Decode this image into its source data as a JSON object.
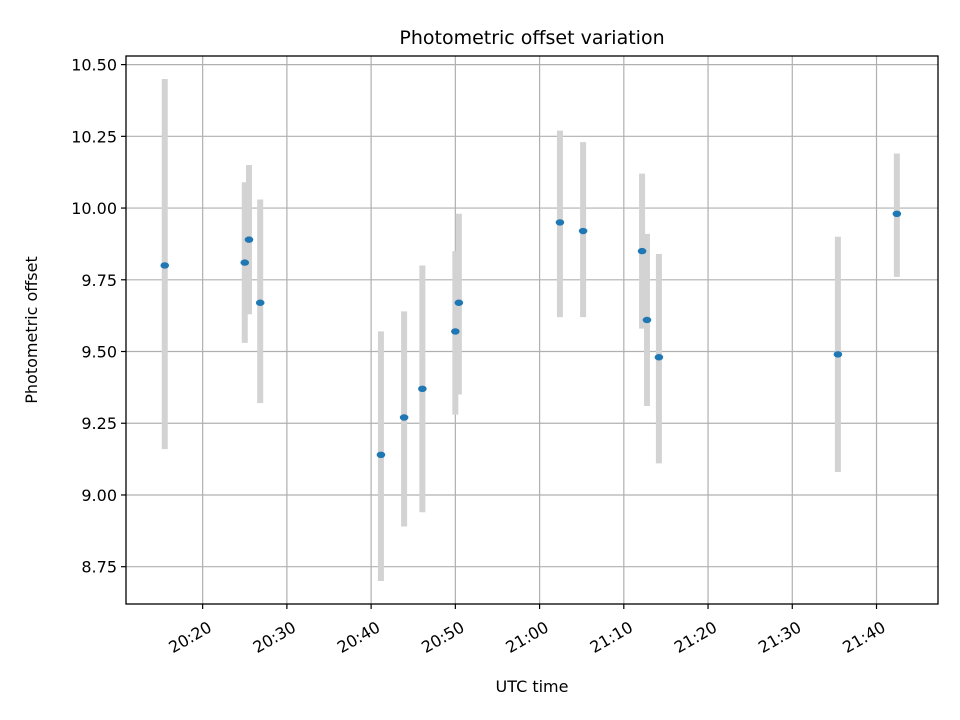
{
  "chart_data": {
    "type": "scatter",
    "title": "Photometric offset variation",
    "xlabel": "UTC time",
    "ylabel": "Photometric offset",
    "grid": true,
    "legend": "none",
    "x_axis_kind": "time",
    "xlim": [
      "20:10:54",
      "21:47:18"
    ],
    "ylim": [
      8.62,
      10.53
    ],
    "x_ticks": [
      "20:20",
      "20:30",
      "20:40",
      "20:50",
      "21:00",
      "21:10",
      "21:20",
      "21:30",
      "21:40"
    ],
    "y_ticks": [
      "8.75",
      "9.00",
      "9.25",
      "9.50",
      "9.75",
      "10.00",
      "10.25",
      "10.50"
    ],
    "colors": {
      "marker": "#1f77b4",
      "errorbar": "#d3d3d3",
      "grid": "#b0b0b0"
    },
    "points": [
      {
        "time": "20:15:30",
        "y": 9.8,
        "ylow": 9.16,
        "yhigh": 10.45
      },
      {
        "time": "20:25:00",
        "y": 9.81,
        "ylow": 9.53,
        "yhigh": 10.09
      },
      {
        "time": "20:25:30",
        "y": 9.89,
        "ylow": 9.63,
        "yhigh": 10.15
      },
      {
        "time": "20:26:50",
        "y": 9.67,
        "ylow": 9.32,
        "yhigh": 10.03
      },
      {
        "time": "20:41:10",
        "y": 9.14,
        "ylow": 8.7,
        "yhigh": 9.57
      },
      {
        "time": "20:43:55",
        "y": 9.27,
        "ylow": 8.89,
        "yhigh": 9.64
      },
      {
        "time": "20:46:05",
        "y": 9.37,
        "ylow": 8.94,
        "yhigh": 9.8
      },
      {
        "time": "20:50:00",
        "y": 9.57,
        "ylow": 9.28,
        "yhigh": 9.85
      },
      {
        "time": "20:50:25",
        "y": 9.67,
        "ylow": 9.35,
        "yhigh": 9.98
      },
      {
        "time": "21:02:25",
        "y": 9.95,
        "ylow": 9.62,
        "yhigh": 10.27
      },
      {
        "time": "21:05:10",
        "y": 9.92,
        "ylow": 9.62,
        "yhigh": 10.23
      },
      {
        "time": "21:12:10",
        "y": 9.85,
        "ylow": 9.58,
        "yhigh": 10.12
      },
      {
        "time": "21:12:45",
        "y": 9.61,
        "ylow": 9.31,
        "yhigh": 9.91
      },
      {
        "time": "21:14:10",
        "y": 9.48,
        "ylow": 9.11,
        "yhigh": 9.84
      },
      {
        "time": "21:35:25",
        "y": 9.49,
        "ylow": 9.08,
        "yhigh": 9.9
      },
      {
        "time": "21:42:25",
        "y": 9.98,
        "ylow": 9.76,
        "yhigh": 10.19
      }
    ]
  }
}
